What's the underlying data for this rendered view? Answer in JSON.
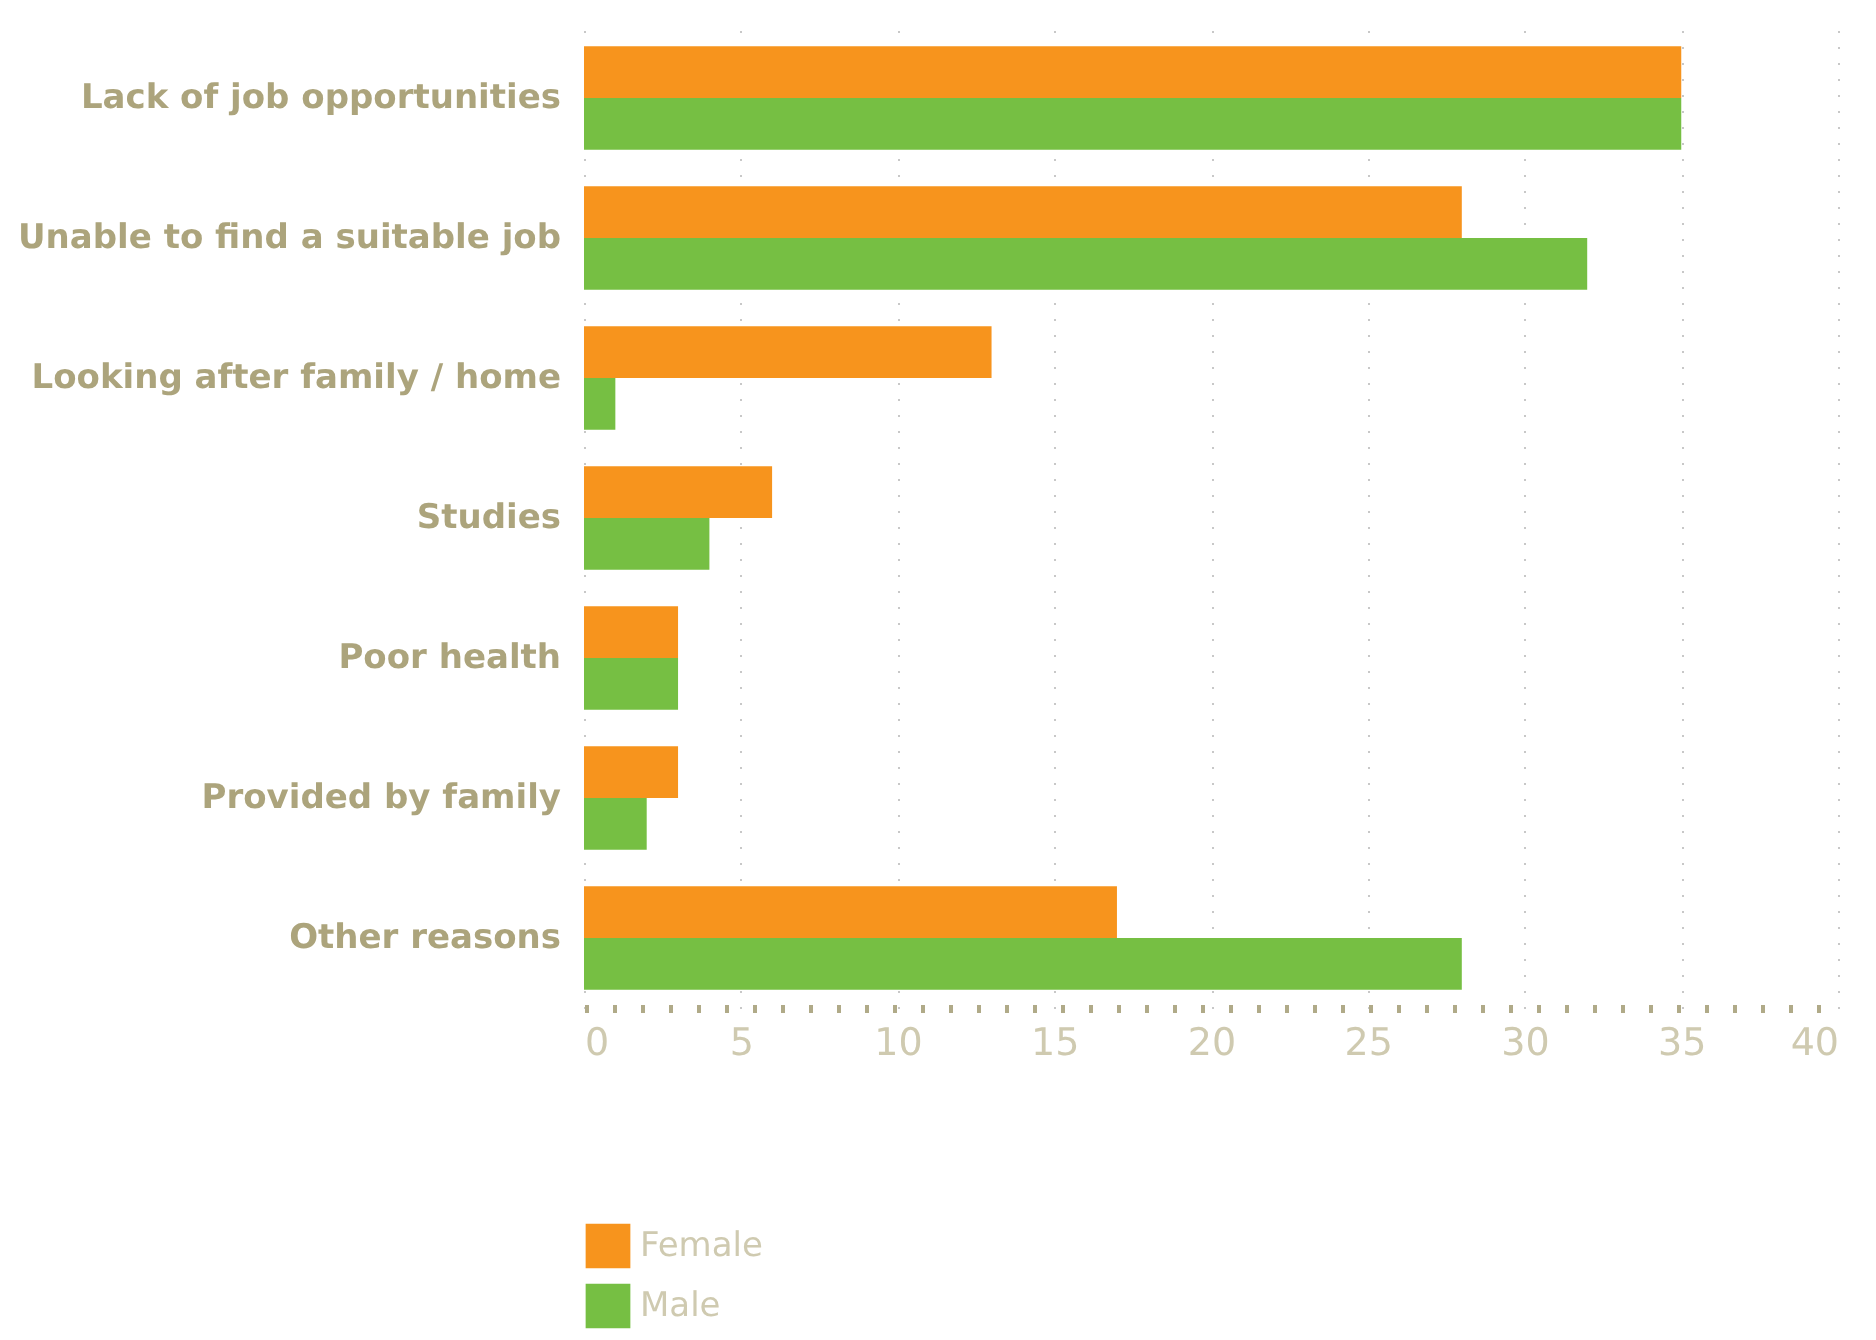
{
  "chart_data": {
    "type": "bar",
    "orientation": "horizontal",
    "categories": [
      "Lack of job opportunities",
      "Unable to find a suitable job",
      "Looking after family / home",
      "Studies",
      "Poor health",
      "Provided by family",
      "Other reasons"
    ],
    "series": [
      {
        "name": "Female",
        "color": "#f7941d",
        "values": [
          35,
          28,
          13,
          6,
          3,
          3,
          17
        ]
      },
      {
        "name": "Male",
        "color": "#76bf43",
        "values": [
          35,
          32,
          1,
          4,
          3,
          2,
          28
        ]
      }
    ],
    "xlim": [
      0,
      40
    ],
    "xticks": [
      0,
      5,
      10,
      15,
      20,
      25,
      30,
      35,
      40
    ],
    "grid": "x",
    "legend": "bottom"
  }
}
